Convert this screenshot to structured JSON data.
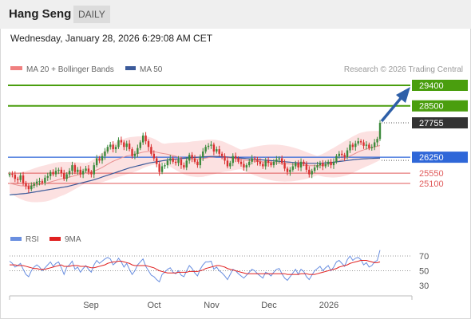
{
  "header": {
    "title": "Hang Seng",
    "timeframe": "DAILY"
  },
  "datetime": "Wednesday, January 28, 2026 6:29:08 AM CET",
  "legend": {
    "ma20_label": "MA 20 + Bollinger Bands",
    "ma50_label": "MA 50",
    "credit": "Research © 2026 Trading Central"
  },
  "rsi_legend": {
    "rsi_label": "RSI",
    "ma9_label": "9MA"
  },
  "colors": {
    "target": "#4a9e0e",
    "pivot": "#2f67d8",
    "support": "#e05a5a",
    "last": "#333333",
    "ma50": "#3b5a9a",
    "ma20": "#e88",
    "band": "#fbdada",
    "up": "#3c8a3c",
    "down": "#d93030",
    "rsi": "#6a8fe0",
    "rsi_ma": "#e02020",
    "arrow": "#2e5fa8"
  },
  "chart_data": [
    {
      "type": "candlestick",
      "title": "Hang Seng",
      "x_tick_labels": [
        "Sep",
        "Oct",
        "Nov",
        "Dec",
        "2026"
      ],
      "y_range": [
        24350,
        29800
      ],
      "last_price": 27755,
      "levels": [
        {
          "value": 29400,
          "label": "29400",
          "kind": "target"
        },
        {
          "value": 28500,
          "label": "28500",
          "kind": "target"
        },
        {
          "value": 27755,
          "label": "27755",
          "kind": "last"
        },
        {
          "value": 26250,
          "label": "26250",
          "kind": "pivot"
        },
        {
          "value": 25550,
          "label": "25550",
          "kind": "support"
        },
        {
          "value": 25100,
          "label": "25100",
          "kind": "support"
        }
      ],
      "series": [
        {
          "name": "MA 20 + Bollinger Bands"
        },
        {
          "name": "MA 50"
        }
      ],
      "close": [
        25520,
        25480,
        25300,
        25250,
        25450,
        25120,
        24980,
        24850,
        25000,
        25080,
        25180,
        25200,
        25130,
        25350,
        25420,
        25600,
        25500,
        25650,
        25700,
        25550,
        25300,
        25500,
        25650,
        25900,
        25600,
        25700,
        25500,
        25650,
        25750,
        25600,
        25500,
        25900,
        26200,
        26100,
        26300,
        26500,
        26700,
        26800,
        26600,
        26700,
        27000,
        26900,
        26700,
        26850,
        26600,
        26300,
        26400,
        26650,
        26900,
        27200,
        26950,
        26700,
        26400,
        26200,
        25950,
        25600,
        25850,
        25900,
        26100,
        26200,
        26050,
        26000,
        26150,
        25900,
        25800,
        26100,
        26350,
        26200,
        26050,
        25900,
        26250,
        26500,
        26700,
        26750,
        26800,
        26500,
        26600,
        26400,
        26300,
        26100,
        25850,
        26000,
        26300,
        26200,
        26050,
        25950,
        25800,
        25900,
        26050,
        26200,
        26150,
        26050,
        25950,
        25850,
        26100,
        26000,
        25900,
        26050,
        26150,
        26200,
        26000,
        25750,
        25600,
        25700,
        25850,
        26000,
        25800,
        26050,
        25950,
        25700,
        25500,
        25650,
        25800,
        25900,
        26000,
        25850,
        25950,
        26050,
        25900,
        26050,
        26300,
        26400,
        26350,
        26250,
        26550,
        26800,
        26700,
        26850,
        26950,
        26900,
        26750,
        26800,
        26650,
        26700,
        26900,
        27050,
        27755
      ],
      "ma20": [
        25100,
        25080,
        25050,
        25020,
        25000,
        24990,
        24980,
        24990,
        25000,
        25020,
        25040,
        25060,
        25080,
        25100,
        25130,
        25160,
        25200,
        25230,
        25270,
        25300,
        25320,
        25350,
        25380,
        25410,
        25440,
        25470,
        25500,
        25530,
        25560,
        25580,
        25600,
        25640,
        25690,
        25740,
        25800,
        25870,
        25940,
        26010,
        26070,
        26120,
        26170,
        26220,
        26260,
        26300,
        26330,
        26350,
        26380,
        26410,
        26440,
        26470,
        26490,
        26500,
        26500,
        26490,
        26470,
        26440,
        26420,
        26400,
        26380,
        26350,
        26320,
        26290,
        26260,
        26230,
        26200,
        26180,
        26170,
        26170,
        26170,
        26170,
        26180,
        26190,
        26210,
        26230,
        26250,
        26260,
        26270,
        26270,
        26270,
        26260,
        26240,
        26220,
        26210,
        26190,
        26170,
        26150,
        26130,
        26110,
        26100,
        26090,
        26080,
        26070,
        26060,
        26050,
        26040,
        26030,
        26020,
        26010,
        26000,
        25990,
        25980,
        25970,
        25960,
        25950,
        25940,
        25930,
        25920,
        25910,
        25900,
        25890,
        25880,
        25880,
        25880,
        25880,
        25890,
        25900,
        25920,
        25950,
        25980,
        26010,
        26050,
        26090,
        26140,
        26190,
        26240,
        26300,
        26360,
        26420,
        26480,
        26530,
        26570,
        26610,
        26640,
        26670,
        26700,
        26730,
        26760
      ],
      "ma50": [
        24600,
        24610,
        24620,
        24630,
        24640,
        24650,
        24660,
        24680,
        24700,
        24720,
        24740,
        24760,
        24780,
        24800,
        24820,
        24840,
        24860,
        24880,
        24900,
        24920,
        24940,
        24960,
        24990,
        25020,
        25050,
        25080,
        25110,
        25140,
        25170,
        25200,
        25230,
        25260,
        25300,
        25340,
        25380,
        25420,
        25460,
        25500,
        25540,
        25580,
        25620,
        25660,
        25700,
        25740,
        25780,
        25810,
        25840,
        25870,
        25900,
        25930,
        25960,
        25990,
        26010,
        26030,
        26050,
        26070,
        26090,
        26110,
        26130,
        26150,
        26160,
        26170,
        26180,
        26190,
        26200,
        26210,
        26220,
        26230,
        26240,
        26250,
        26260,
        26265,
        26270,
        26275,
        26280,
        26280,
        26280,
        26275,
        26270,
        26265,
        26260,
        26250,
        26240,
        26230,
        26220,
        26210,
        26200,
        26190,
        26180,
        26170,
        26160,
        26150,
        26140,
        26130,
        26120,
        26110,
        26100,
        26090,
        26080,
        26070,
        26060,
        26050,
        26040,
        26030,
        26020,
        26010,
        26000,
        25995,
        25990,
        25985,
        25980,
        25980,
        25980,
        25980,
        25985,
        25990,
        26000,
        26010,
        26020,
        26030,
        26045,
        26060,
        26075,
        26090,
        26105,
        26120,
        26135,
        26150,
        26160,
        26170,
        26180,
        26185,
        26190,
        26195,
        26200,
        26205,
        26210
      ]
    },
    {
      "type": "line",
      "title": "RSI",
      "y_tick_labels": [
        "70",
        "50",
        "30"
      ],
      "y_range": [
        20,
        80
      ],
      "series": [
        {
          "name": "RSI",
          "values": [
            63,
            60,
            55,
            57,
            60,
            52,
            45,
            42,
            50,
            55,
            58,
            55,
            50,
            54,
            58,
            62,
            56,
            60,
            62,
            54,
            45,
            55,
            58,
            63,
            52,
            55,
            48,
            53,
            57,
            52,
            48,
            58,
            64,
            60,
            63,
            66,
            68,
            66,
            58,
            61,
            67,
            62,
            55,
            60,
            52,
            45,
            50,
            58,
            62,
            66,
            56,
            50,
            44,
            42,
            38,
            35,
            45,
            48,
            52,
            54,
            48,
            46,
            50,
            44,
            42,
            50,
            57,
            53,
            47,
            43,
            52,
            58,
            62,
            62,
            63,
            52,
            55,
            50,
            47,
            43,
            38,
            45,
            52,
            50,
            46,
            43,
            40,
            44,
            48,
            52,
            50,
            46,
            43,
            40,
            48,
            46,
            43,
            48,
            52,
            53,
            46,
            40,
            37,
            42,
            47,
            52,
            45,
            52,
            49,
            42,
            38,
            44,
            50,
            53,
            56,
            50,
            54,
            57,
            50,
            55,
            62,
            64,
            60,
            56,
            65,
            70,
            64,
            67,
            68,
            65,
            58,
            61,
            55,
            57,
            62,
            64,
            78
          ]
        },
        {
          "name": "9MA",
          "values": [
            58,
            58,
            58,
            57,
            57,
            57,
            56,
            55,
            54,
            53,
            53,
            52,
            52,
            52,
            53,
            54,
            55,
            56,
            57,
            58,
            56,
            56,
            56,
            57,
            57,
            57,
            56,
            56,
            56,
            55,
            54,
            54,
            55,
            56,
            57,
            58,
            60,
            61,
            62,
            62,
            63,
            63,
            62,
            61,
            60,
            58,
            57,
            57,
            57,
            57,
            57,
            56,
            55,
            54,
            52,
            50,
            49,
            48,
            47,
            47,
            47,
            47,
            48,
            48,
            48,
            48,
            49,
            49,
            49,
            49,
            50,
            51,
            53,
            54,
            55,
            56,
            57,
            57,
            56,
            55,
            53,
            52,
            51,
            50,
            49,
            48,
            47,
            46,
            46,
            46,
            46,
            46,
            46,
            46,
            46,
            46,
            46,
            46,
            46,
            46,
            46,
            46,
            45,
            45,
            45,
            45,
            45,
            46,
            46,
            46,
            45,
            45,
            45,
            46,
            47,
            48,
            49,
            50,
            51,
            52,
            53,
            55,
            56,
            57,
            58,
            60,
            61,
            62,
            63,
            64,
            64,
            64,
            63,
            62,
            61,
            61,
            62
          ]
        }
      ]
    }
  ]
}
